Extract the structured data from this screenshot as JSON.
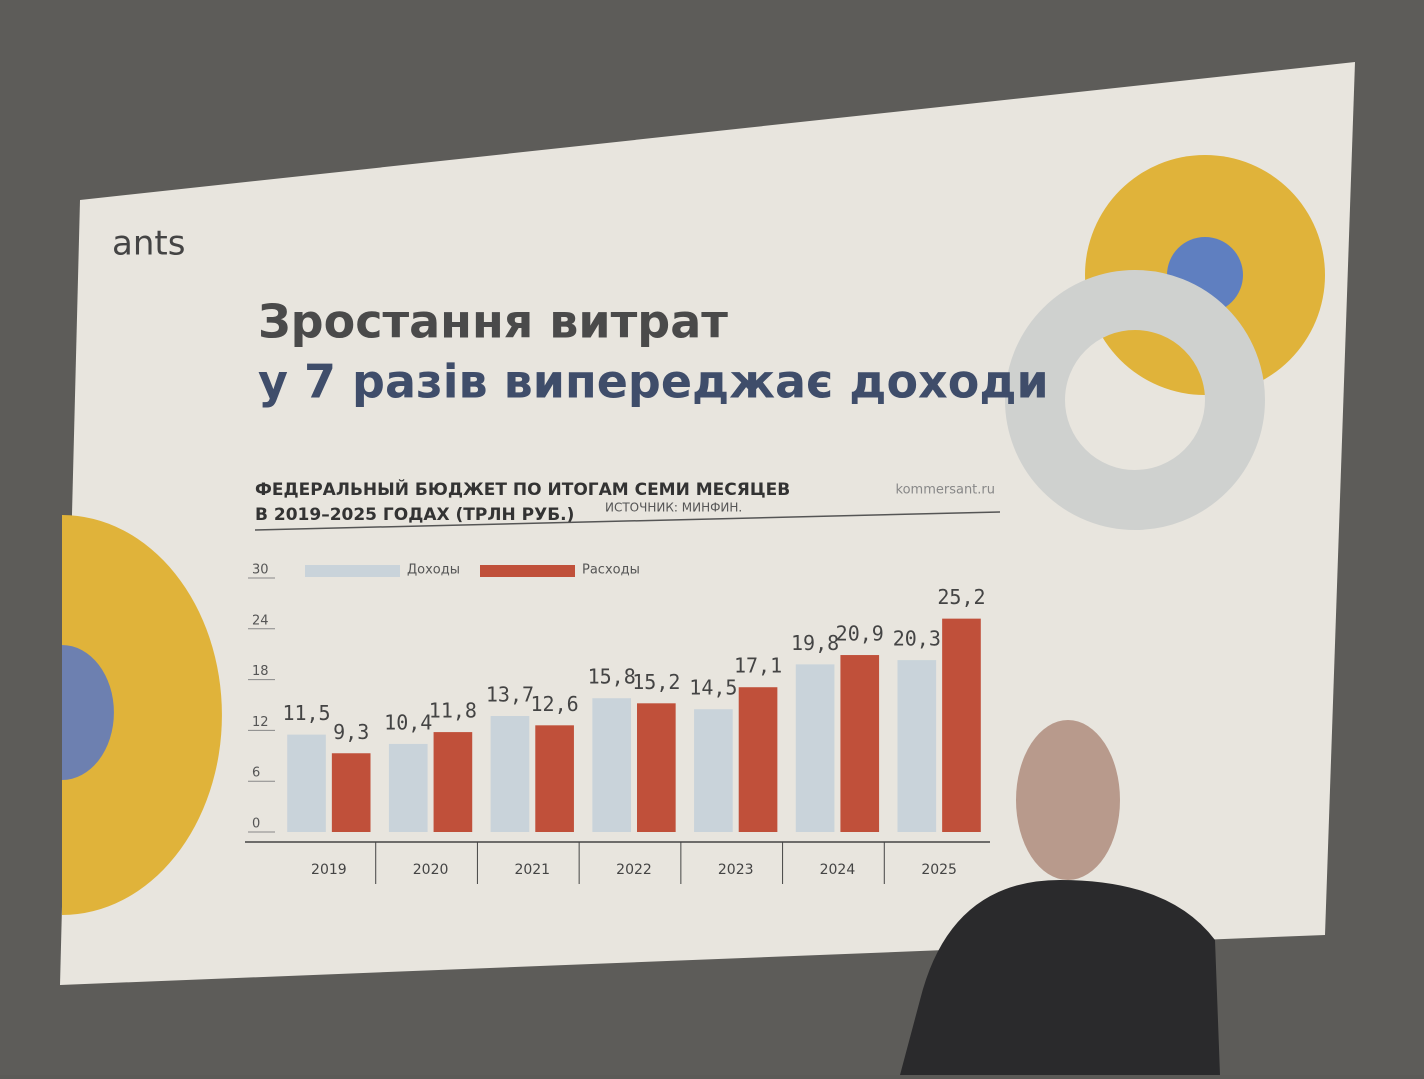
{
  "slide": {
    "logo": "ants",
    "heading": [
      "Зростання витрат",
      "у 7 разів випереджає доходи"
    ]
  },
  "chart_data": {
    "type": "bar",
    "title": [
      "ФЕДЕРАЛЬНЫЙ БЮДЖЕТ ПО ИТОГАМ СЕМИ МЕСЯЦЕВ",
      "В 2019–2025 ГОДАХ (ТРЛН РУБ.)"
    ],
    "source": "ИСТОЧНИК: МИНФИН.",
    "credit": "kommersant.ru",
    "categories": [
      "2019",
      "2020",
      "2021",
      "2022",
      "2023",
      "2024",
      "2025"
    ],
    "series": [
      {
        "name": "Доходы",
        "color": "#c9d3da",
        "values": [
          11.5,
          10.4,
          13.7,
          15.8,
          14.5,
          19.8,
          20.3
        ],
        "value_labels": [
          "11,5",
          "10,4",
          "13,7",
          "15,8",
          "14,5",
          "19,8",
          "20,3"
        ]
      },
      {
        "name": "Расходы",
        "color": "#c0503a",
        "values": [
          9.3,
          11.8,
          12.6,
          15.2,
          17.1,
          20.9,
          25.2
        ],
        "value_labels": [
          "9,3",
          "11,8",
          "12,6",
          "15,2",
          "17,1",
          "20,9",
          "25,2"
        ]
      }
    ],
    "ylim": [
      0,
      30
    ],
    "yticks": [
      0,
      6,
      12,
      18,
      24,
      30
    ],
    "grid": false,
    "legend": "top"
  }
}
